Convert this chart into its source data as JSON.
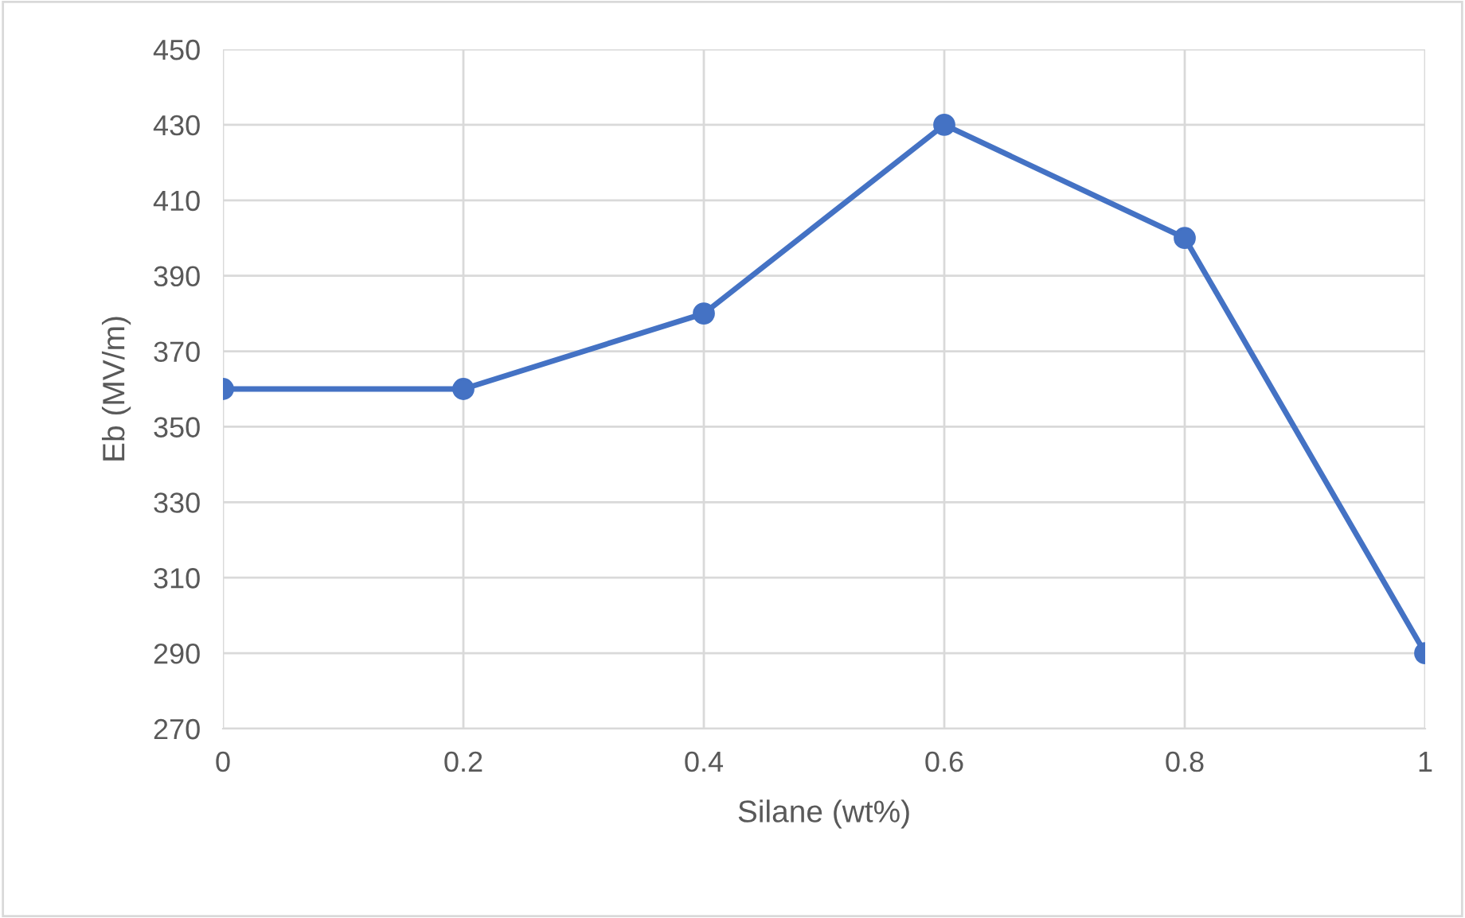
{
  "chart_data": {
    "type": "line",
    "xlabel": "Silane (wt%)",
    "ylabel": "Eb (MV/m)",
    "x": [
      0,
      0.2,
      0.4,
      0.6,
      0.8,
      1
    ],
    "series": [
      {
        "color": "#4472c4",
        "values": [
          360,
          360,
          380,
          430,
          400,
          290
        ]
      }
    ],
    "xlim": [
      0,
      1
    ],
    "xticks": [
      0,
      0.2,
      0.4,
      0.6,
      0.8,
      1
    ],
    "ylim": [
      270,
      450
    ],
    "yticks": [
      270,
      290,
      310,
      330,
      350,
      370,
      390,
      410,
      430,
      450
    ],
    "grid": true,
    "marker": "circle",
    "line_style": "solid"
  }
}
